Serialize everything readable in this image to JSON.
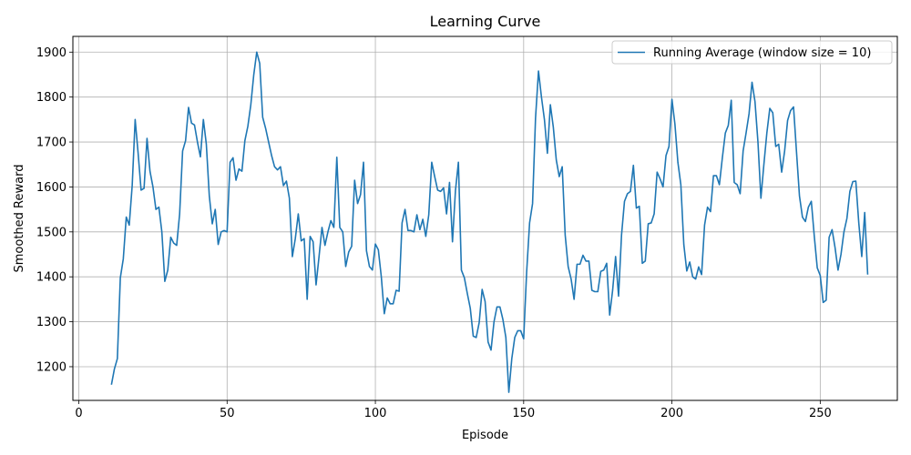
{
  "chart_data": {
    "type": "line",
    "title": "Learning Curve",
    "xlabel": "Episode",
    "ylabel": "Smoothed Reward",
    "xlim": [
      -2,
      276
    ],
    "ylim": [
      1125,
      1935
    ],
    "xticks": [
      0,
      50,
      100,
      150,
      200,
      250
    ],
    "yticks": [
      1200,
      1300,
      1400,
      1500,
      1600,
      1700,
      1800,
      1900
    ],
    "grid": true,
    "legend_position": "top-right",
    "series_color": "#1f77b4",
    "series": [
      {
        "name": "Running Average (window size = 10)",
        "x_start": 11,
        "values": [
          1160,
          1195,
          1218,
          1398,
          1440,
          1533,
          1515,
          1603,
          1750,
          1675,
          1593,
          1597,
          1708,
          1635,
          1600,
          1550,
          1555,
          1500,
          1390,
          1415,
          1488,
          1475,
          1470,
          1540,
          1680,
          1703,
          1777,
          1742,
          1738,
          1700,
          1667,
          1750,
          1695,
          1580,
          1518,
          1550,
          1472,
          1500,
          1503,
          1500,
          1655,
          1665,
          1615,
          1640,
          1635,
          1703,
          1735,
          1783,
          1850,
          1900,
          1875,
          1755,
          1730,
          1700,
          1670,
          1645,
          1638,
          1645,
          1603,
          1613,
          1575,
          1445,
          1485,
          1540,
          1480,
          1485,
          1350,
          1490,
          1478,
          1382,
          1445,
          1510,
          1470,
          1500,
          1525,
          1510,
          1666,
          1510,
          1500,
          1423,
          1455,
          1468,
          1615,
          1563,
          1583,
          1655,
          1458,
          1423,
          1415,
          1473,
          1460,
          1400,
          1318,
          1353,
          1340,
          1340,
          1370,
          1368,
          1520,
          1550,
          1503,
          1503,
          1500,
          1538,
          1505,
          1528,
          1490,
          1538,
          1655,
          1623,
          1593,
          1590,
          1598,
          1540,
          1610,
          1478,
          1592,
          1655,
          1415,
          1398,
          1363,
          1330,
          1268,
          1265,
          1298,
          1372,
          1345,
          1255,
          1237,
          1300,
          1333,
          1333,
          1305,
          1265,
          1143,
          1218,
          1265,
          1280,
          1280,
          1262,
          1410,
          1520,
          1563,
          1753,
          1858,
          1800,
          1750,
          1675,
          1783,
          1733,
          1660,
          1623,
          1645,
          1493,
          1423,
          1395,
          1350,
          1428,
          1428,
          1448,
          1435,
          1435,
          1370,
          1367,
          1367,
          1412,
          1415,
          1430,
          1315,
          1370,
          1445,
          1357,
          1493,
          1568,
          1585,
          1590,
          1648,
          1553,
          1557,
          1430,
          1435,
          1518,
          1520,
          1540,
          1633,
          1618,
          1600,
          1670,
          1690,
          1795,
          1740,
          1655,
          1605,
          1472,
          1413,
          1433,
          1400,
          1395,
          1422,
          1405,
          1515,
          1555,
          1545,
          1625,
          1625,
          1605,
          1665,
          1720,
          1737,
          1793,
          1610,
          1605,
          1585,
          1680,
          1720,
          1763,
          1833,
          1790,
          1700,
          1575,
          1650,
          1720,
          1775,
          1765,
          1690,
          1695,
          1633,
          1680,
          1748,
          1770,
          1778,
          1678,
          1580,
          1533,
          1523,
          1555,
          1568,
          1490,
          1420,
          1403,
          1343,
          1348,
          1488,
          1505,
          1465,
          1415,
          1450,
          1500,
          1530,
          1590,
          1612,
          1613,
          1520,
          1445,
          1543,
          1405
        ]
      }
    ]
  }
}
